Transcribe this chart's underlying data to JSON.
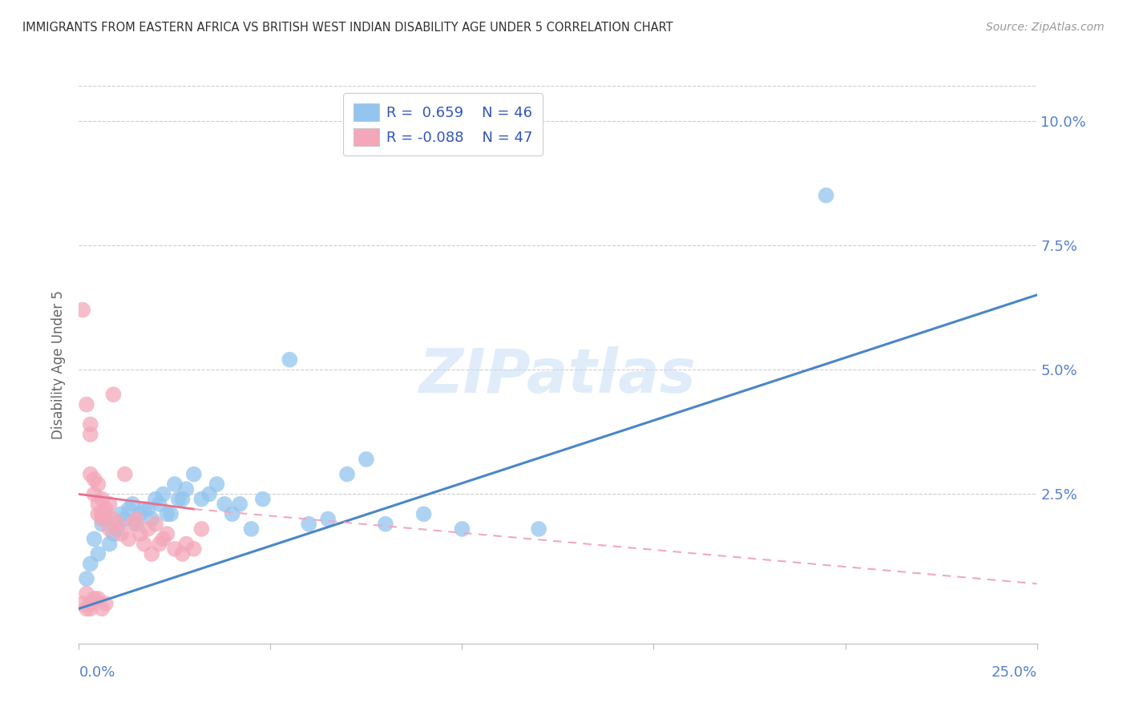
{
  "title": "IMMIGRANTS FROM EASTERN AFRICA VS BRITISH WEST INDIAN DISABILITY AGE UNDER 5 CORRELATION CHART",
  "source": "Source: ZipAtlas.com",
  "ylabel": "Disability Age Under 5",
  "ytick_vals": [
    0.025,
    0.05,
    0.075,
    0.1
  ],
  "ytick_labels": [
    "2.5%",
    "5.0%",
    "7.5%",
    "10.0%"
  ],
  "xlim": [
    0.0,
    0.25
  ],
  "ylim": [
    -0.005,
    0.107
  ],
  "watermark": "ZIPatlas",
  "blue_color": "#93C5EE",
  "pink_color": "#F4A7B9",
  "blue_line_color": "#4A86C8",
  "pink_solid_color": "#E87090",
  "pink_dash_color": "#F0A8BE",
  "axis_label_color": "#5580CC",
  "legend_text_color": "#3355BB",
  "blue_scatter": [
    [
      0.002,
      0.008
    ],
    [
      0.003,
      0.011
    ],
    [
      0.004,
      0.016
    ],
    [
      0.005,
      0.013
    ],
    [
      0.006,
      0.019
    ],
    [
      0.007,
      0.02
    ],
    [
      0.008,
      0.015
    ],
    [
      0.009,
      0.017
    ],
    [
      0.01,
      0.018
    ],
    [
      0.011,
      0.021
    ],
    [
      0.012,
      0.02
    ],
    [
      0.013,
      0.022
    ],
    [
      0.014,
      0.023
    ],
    [
      0.015,
      0.019
    ],
    [
      0.016,
      0.021
    ],
    [
      0.017,
      0.022
    ],
    [
      0.018,
      0.022
    ],
    [
      0.019,
      0.02
    ],
    [
      0.02,
      0.024
    ],
    [
      0.021,
      0.023
    ],
    [
      0.022,
      0.025
    ],
    [
      0.023,
      0.021
    ],
    [
      0.024,
      0.021
    ],
    [
      0.025,
      0.027
    ],
    [
      0.026,
      0.024
    ],
    [
      0.027,
      0.024
    ],
    [
      0.028,
      0.026
    ],
    [
      0.03,
      0.029
    ],
    [
      0.032,
      0.024
    ],
    [
      0.034,
      0.025
    ],
    [
      0.036,
      0.027
    ],
    [
      0.038,
      0.023
    ],
    [
      0.04,
      0.021
    ],
    [
      0.042,
      0.023
    ],
    [
      0.045,
      0.018
    ],
    [
      0.048,
      0.024
    ],
    [
      0.055,
      0.052
    ],
    [
      0.06,
      0.019
    ],
    [
      0.065,
      0.02
    ],
    [
      0.07,
      0.029
    ],
    [
      0.075,
      0.032
    ],
    [
      0.08,
      0.019
    ],
    [
      0.09,
      0.021
    ],
    [
      0.1,
      0.018
    ],
    [
      0.12,
      0.018
    ],
    [
      0.195,
      0.085
    ]
  ],
  "pink_scatter": [
    [
      0.001,
      0.062
    ],
    [
      0.002,
      0.043
    ],
    [
      0.003,
      0.039
    ],
    [
      0.003,
      0.037
    ],
    [
      0.003,
      0.029
    ],
    [
      0.004,
      0.028
    ],
    [
      0.004,
      0.025
    ],
    [
      0.005,
      0.027
    ],
    [
      0.005,
      0.023
    ],
    [
      0.005,
      0.021
    ],
    [
      0.006,
      0.024
    ],
    [
      0.006,
      0.021
    ],
    [
      0.006,
      0.02
    ],
    [
      0.007,
      0.021
    ],
    [
      0.007,
      0.022
    ],
    [
      0.008,
      0.023
    ],
    [
      0.008,
      0.018
    ],
    [
      0.009,
      0.02
    ],
    [
      0.009,
      0.045
    ],
    [
      0.01,
      0.019
    ],
    [
      0.011,
      0.017
    ],
    [
      0.012,
      0.029
    ],
    [
      0.013,
      0.016
    ],
    [
      0.014,
      0.019
    ],
    [
      0.015,
      0.02
    ],
    [
      0.016,
      0.017
    ],
    [
      0.017,
      0.015
    ],
    [
      0.018,
      0.018
    ],
    [
      0.019,
      0.013
    ],
    [
      0.02,
      0.019
    ],
    [
      0.021,
      0.015
    ],
    [
      0.022,
      0.016
    ],
    [
      0.023,
      0.017
    ],
    [
      0.025,
      0.014
    ],
    [
      0.027,
      0.013
    ],
    [
      0.028,
      0.015
    ],
    [
      0.03,
      0.014
    ],
    [
      0.032,
      0.018
    ],
    [
      0.004,
      0.004
    ],
    [
      0.003,
      0.003
    ],
    [
      0.005,
      0.004
    ],
    [
      0.006,
      0.002
    ],
    [
      0.007,
      0.003
    ],
    [
      0.002,
      0.002
    ],
    [
      0.001,
      0.003
    ],
    [
      0.002,
      0.005
    ],
    [
      0.003,
      0.002
    ]
  ],
  "blue_line": {
    "x0": 0.0,
    "y0": 0.002,
    "x1": 0.25,
    "y1": 0.065
  },
  "pink_solid_line": {
    "x0": 0.0,
    "y0": 0.025,
    "x1": 0.03,
    "y1": 0.022
  },
  "pink_dash_line": {
    "x0": 0.03,
    "y0": 0.022,
    "x1": 0.25,
    "y1": 0.007
  },
  "grid_color": "#CCCCCC",
  "spine_color": "#BBBBBB"
}
